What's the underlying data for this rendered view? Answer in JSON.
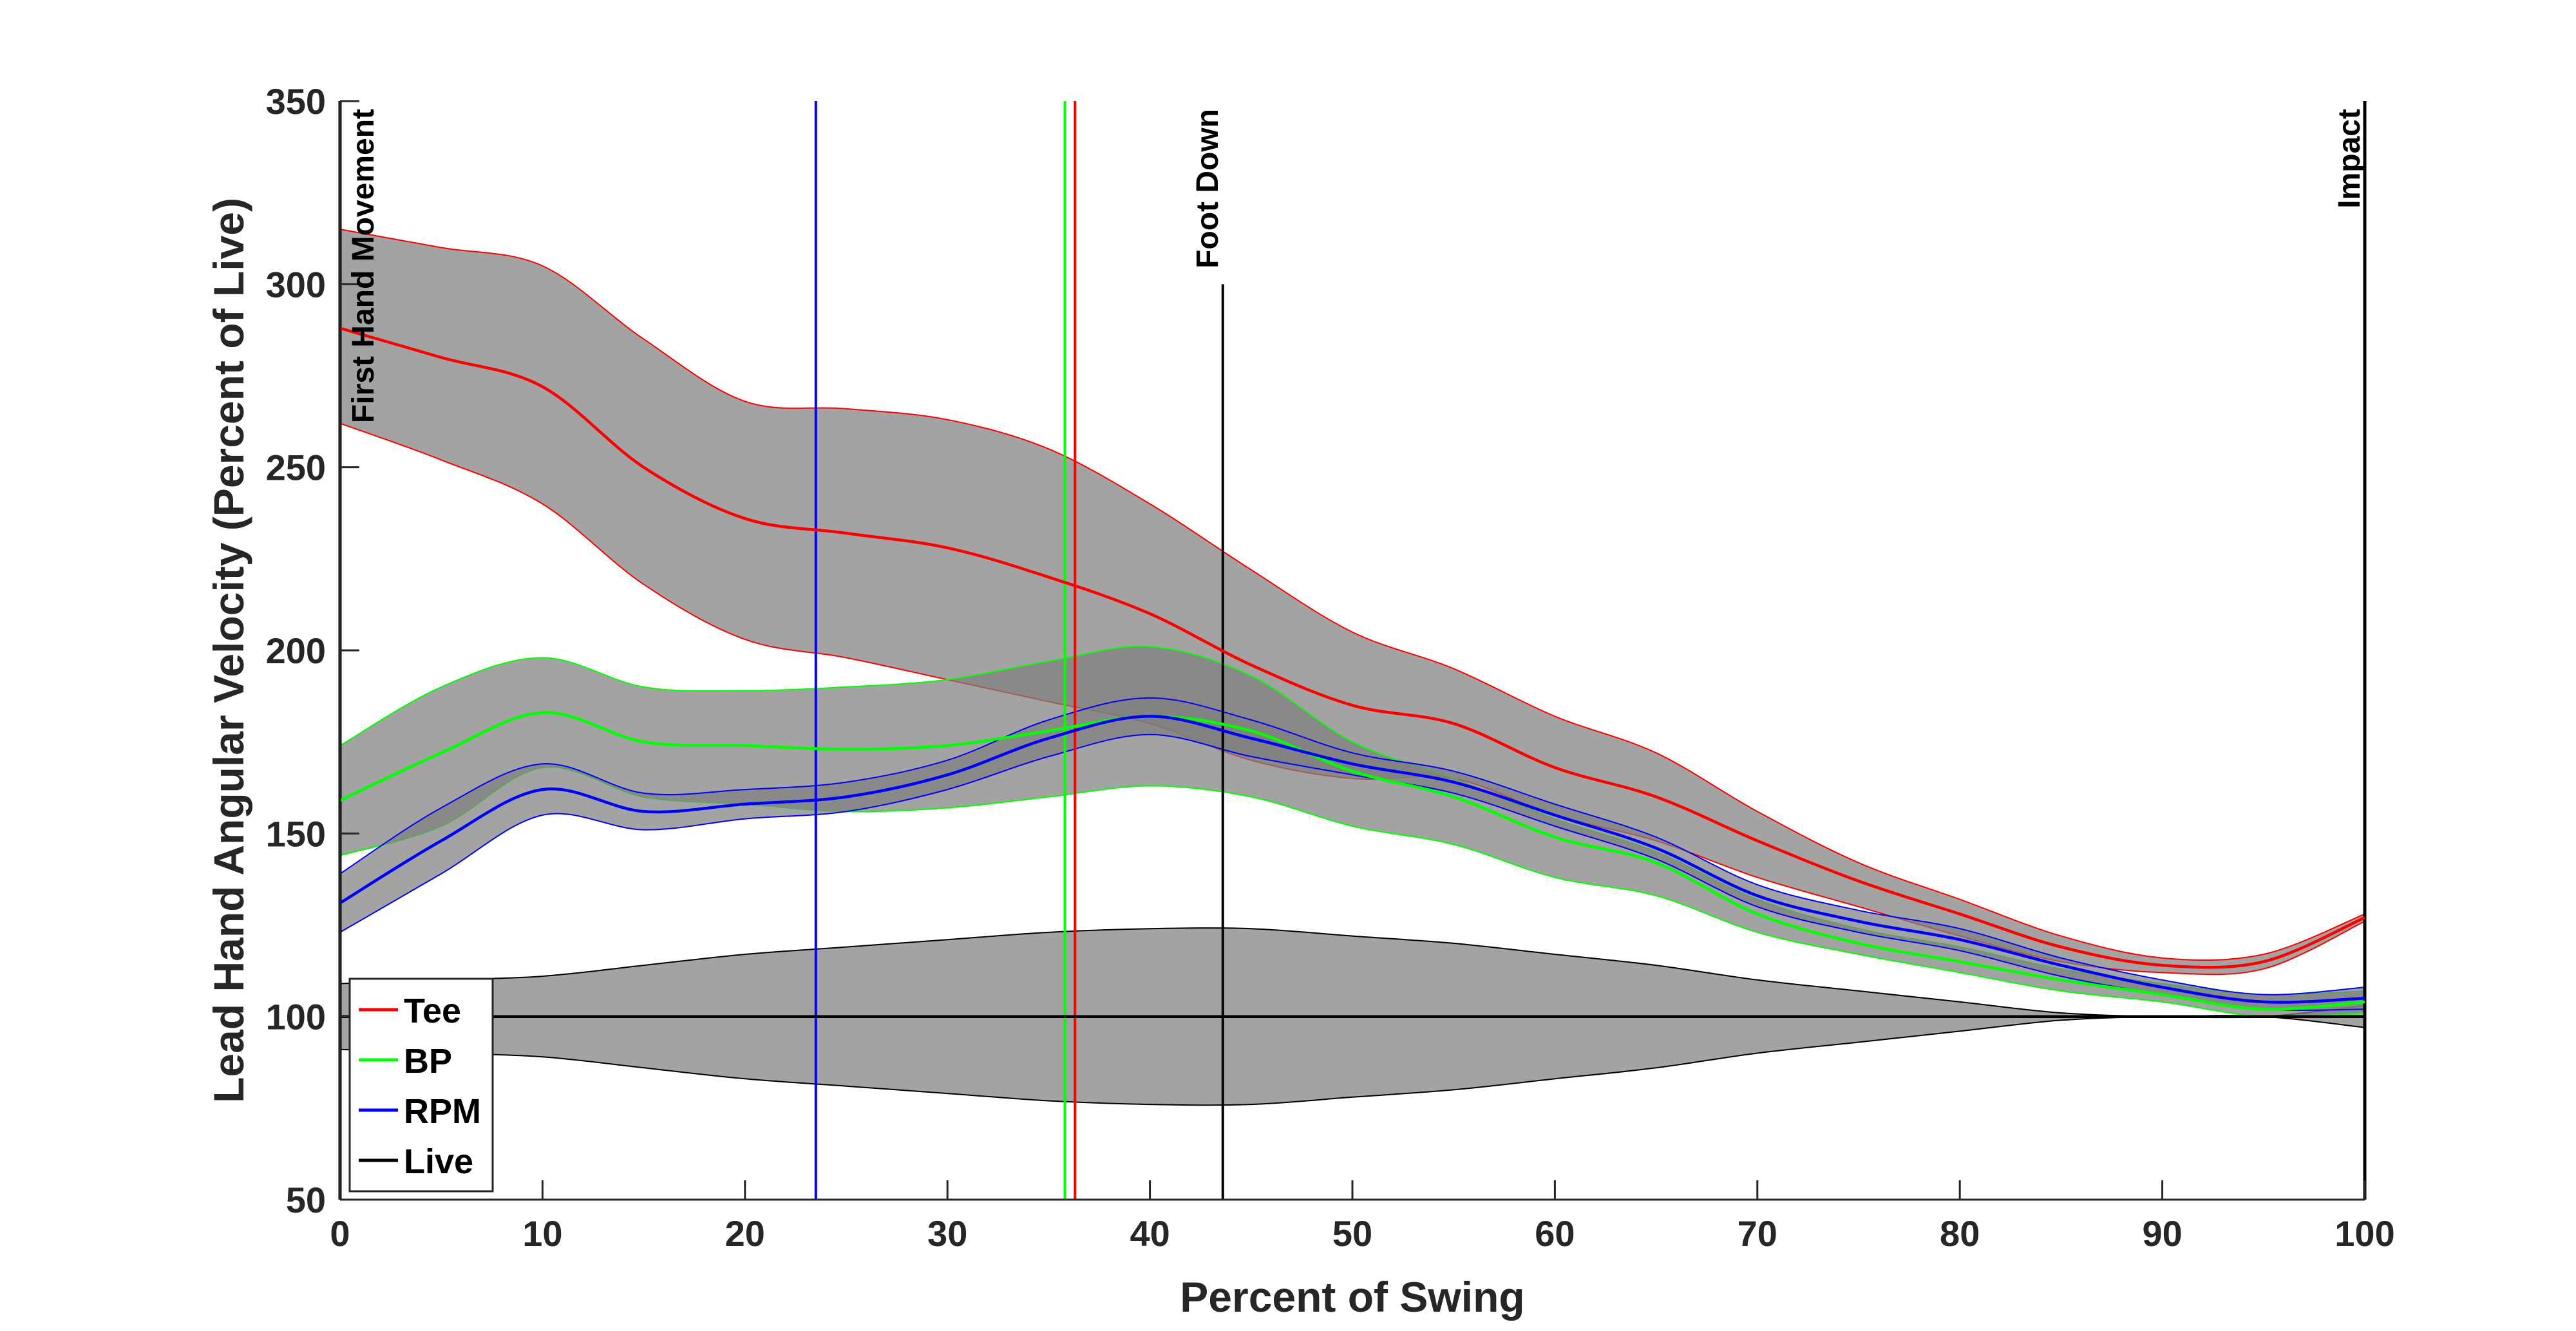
{
  "chart_data": {
    "type": "line",
    "xlabel": "Percent of Swing",
    "ylabel": "Lead Hand Angular Velocity (Percent of Live)",
    "xlim": [
      0,
      100
    ],
    "ylim": [
      50,
      350
    ],
    "xticks": [
      0,
      10,
      20,
      30,
      40,
      50,
      60,
      70,
      80,
      90,
      100
    ],
    "yticks": [
      50,
      100,
      150,
      200,
      250,
      300,
      350
    ],
    "grid": false,
    "legend_position": "bottom-left",
    "band_color": "#808080",
    "series": [
      {
        "name": "Tee",
        "color": "#ff0000",
        "x": [
          0,
          5,
          10,
          15,
          20,
          25,
          30,
          35,
          40,
          45,
          50,
          55,
          60,
          65,
          70,
          75,
          80,
          85,
          90,
          95,
          100
        ],
        "mean": [
          288,
          280,
          272,
          250,
          236,
          232,
          228,
          220,
          210,
          196,
          185,
          180,
          168,
          160,
          148,
          137,
          128,
          119,
          114,
          115,
          127
        ],
        "upper": [
          315,
          310,
          305,
          285,
          268,
          266,
          263,
          255,
          240,
          222,
          205,
          195,
          182,
          172,
          156,
          142,
          132,
          122,
          116,
          117,
          128
        ],
        "lower": [
          262,
          252,
          240,
          218,
          203,
          198,
          192,
          186,
          180,
          170,
          165,
          165,
          155,
          148,
          138,
          130,
          122,
          115,
          112,
          113,
          126
        ]
      },
      {
        "name": "BP",
        "color": "#00ff00",
        "x": [
          0,
          5,
          10,
          15,
          20,
          25,
          30,
          35,
          40,
          45,
          50,
          55,
          60,
          65,
          70,
          75,
          80,
          85,
          90,
          95,
          100
        ],
        "mean": [
          159,
          172,
          183,
          175,
          174,
          173,
          174,
          178,
          182,
          178,
          167,
          160,
          149,
          142,
          128,
          120,
          115,
          110,
          106,
          102,
          104
        ],
        "upper": [
          174,
          190,
          198,
          190,
          189,
          190,
          192,
          197,
          201,
          193,
          175,
          165,
          154,
          145,
          132,
          124,
          119,
          113,
          109,
          106,
          107
        ],
        "lower": [
          144,
          152,
          168,
          160,
          158,
          156,
          157,
          160,
          163,
          160,
          152,
          147,
          138,
          133,
          123,
          117,
          112,
          107,
          104,
          100,
          101
        ]
      },
      {
        "name": "RPM",
        "color": "#0000ff",
        "x": [
          0,
          5,
          10,
          15,
          20,
          25,
          30,
          35,
          40,
          45,
          50,
          55,
          60,
          65,
          70,
          75,
          80,
          85,
          90,
          95,
          100
        ],
        "mean": [
          131,
          148,
          162,
          156,
          158,
          160,
          166,
          176,
          182,
          176,
          169,
          164,
          155,
          146,
          133,
          126,
          121,
          114,
          108,
          104,
          105
        ],
        "upper": [
          139,
          157,
          169,
          161,
          162,
          164,
          170,
          181,
          187,
          181,
          172,
          167,
          158,
          149,
          136,
          129,
          124,
          116,
          110,
          106,
          108
        ],
        "lower": [
          123,
          139,
          155,
          151,
          154,
          156,
          162,
          171,
          177,
          171,
          166,
          161,
          152,
          143,
          130,
          123,
          118,
          111,
          106,
          102,
          102
        ]
      },
      {
        "name": "Live",
        "color": "#000000",
        "x": [
          0,
          5,
          10,
          15,
          20,
          25,
          30,
          35,
          40,
          45,
          50,
          55,
          60,
          65,
          70,
          75,
          80,
          85,
          90,
          95,
          100
        ],
        "mean": [
          100,
          100,
          100,
          100,
          100,
          100,
          100,
          100,
          100,
          100,
          100,
          100,
          100,
          100,
          100,
          100,
          100,
          100,
          100,
          100,
          100
        ],
        "upper": [
          109,
          110,
          111,
          114,
          117,
          119,
          121,
          123,
          124,
          124,
          122,
          120,
          117,
          114,
          110,
          107,
          104,
          101,
          100,
          100,
          103
        ],
        "lower": [
          91,
          90,
          89,
          86,
          83,
          81,
          79,
          77,
          76,
          76,
          78,
          80,
          83,
          86,
          90,
          93,
          96,
          99,
          100,
          100,
          97
        ]
      }
    ],
    "event_lines": [
      {
        "x": 0,
        "label": "First Hand Movement",
        "color": "#000000"
      },
      {
        "x": 43.6,
        "label": "Foot Down",
        "color": "#000000"
      },
      {
        "x": 100,
        "label": "Impact",
        "color": "#000000"
      }
    ],
    "marker_lines": [
      {
        "x": 23.5,
        "color": "#0000ff"
      },
      {
        "x": 35.8,
        "color": "#00ff00"
      },
      {
        "x": 36.3,
        "color": "#ff0000"
      }
    ]
  }
}
